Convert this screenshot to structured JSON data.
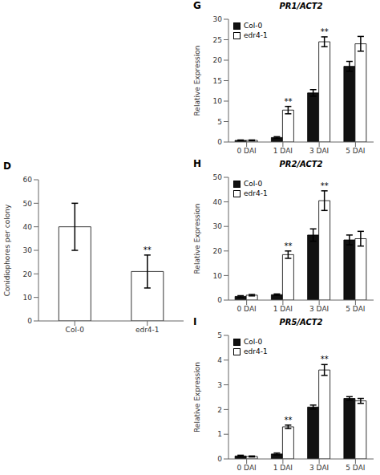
{
  "chart_data": [
    {
      "type": "bar",
      "panel": "D",
      "categories": [
        "Col-0",
        "edr4-1"
      ],
      "values": [
        40,
        21
      ],
      "errors": [
        10,
        7
      ],
      "color": "white",
      "ylabel": "Conidiophores per colony",
      "ylim": [
        0,
        60
      ],
      "yticks": [
        0,
        10,
        20,
        30,
        40,
        50,
        60
      ],
      "annotations": [
        {
          "category": "edr4-1",
          "text": "**"
        }
      ]
    },
    {
      "type": "bar",
      "panel": "G",
      "title": "PR1/ACT2",
      "ylabel": "Relative Expression",
      "categories": [
        "0 DAI",
        "1 DAI",
        "3 DAI",
        "5 DAI"
      ],
      "series": [
        {
          "name": "Col-0",
          "color": "#111111",
          "values": [
            0.4,
            1.1,
            12.0,
            18.5
          ],
          "errors": [
            0.1,
            0.2,
            0.8,
            1.2
          ]
        },
        {
          "name": "edr4-1",
          "color": "white",
          "values": [
            0.4,
            7.8,
            24.5,
            24.0
          ],
          "errors": [
            0.1,
            0.9,
            1.2,
            1.8
          ]
        }
      ],
      "ylim": [
        0,
        30
      ],
      "yticks": [
        0,
        5,
        10,
        15,
        20,
        25,
        30
      ],
      "legend": "upper left",
      "annotations": [
        {
          "category": "1 DAI",
          "series": "edr4-1",
          "text": "**"
        },
        {
          "category": "3 DAI",
          "series": "edr4-1",
          "text": "**"
        }
      ]
    },
    {
      "type": "bar",
      "panel": "H",
      "title": "PR2/ACT2",
      "ylabel": "Relative Expression",
      "categories": [
        "0 DAI",
        "1 DAI",
        "3 DAI",
        "5 DAI"
      ],
      "series": [
        {
          "name": "Col-0",
          "color": "#111111",
          "values": [
            1.5,
            2.2,
            26.5,
            24.5
          ],
          "errors": [
            0.3,
            0.3,
            2.5,
            2.0
          ]
        },
        {
          "name": "edr4-1",
          "color": "white",
          "values": [
            2.0,
            18.5,
            40.5,
            25.0
          ],
          "errors": [
            0.3,
            1.5,
            4.0,
            3.0
          ]
        }
      ],
      "ylim": [
        0,
        50
      ],
      "yticks": [
        0,
        10,
        20,
        30,
        40,
        50
      ],
      "legend": "upper left",
      "annotations": [
        {
          "category": "1 DAI",
          "series": "edr4-1",
          "text": "**"
        },
        {
          "category": "3 DAI",
          "series": "edr4-1",
          "text": "**"
        }
      ]
    },
    {
      "type": "bar",
      "panel": "I",
      "title": "PR5/ACT2",
      "ylabel": "Relative Expression",
      "categories": [
        "0 DAI",
        "1 DAI",
        "3 DAI",
        "5 DAI"
      ],
      "series": [
        {
          "name": "Col-0",
          "color": "#111111",
          "values": [
            0.12,
            0.2,
            2.1,
            2.45
          ],
          "errors": [
            0.03,
            0.04,
            0.08,
            0.07
          ]
        },
        {
          "name": "edr4-1",
          "color": "white",
          "values": [
            0.1,
            1.3,
            3.6,
            2.35
          ],
          "errors": [
            0.02,
            0.07,
            0.22,
            0.1
          ]
        }
      ],
      "ylim": [
        0,
        5
      ],
      "yticks": [
        0,
        1,
        2,
        3,
        4,
        5
      ],
      "legend": "upper left",
      "annotations": [
        {
          "category": "1 DAI",
          "series": "edr4-1",
          "text": "**"
        },
        {
          "category": "3 DAI",
          "series": "edr4-1",
          "text": "**"
        }
      ]
    }
  ]
}
